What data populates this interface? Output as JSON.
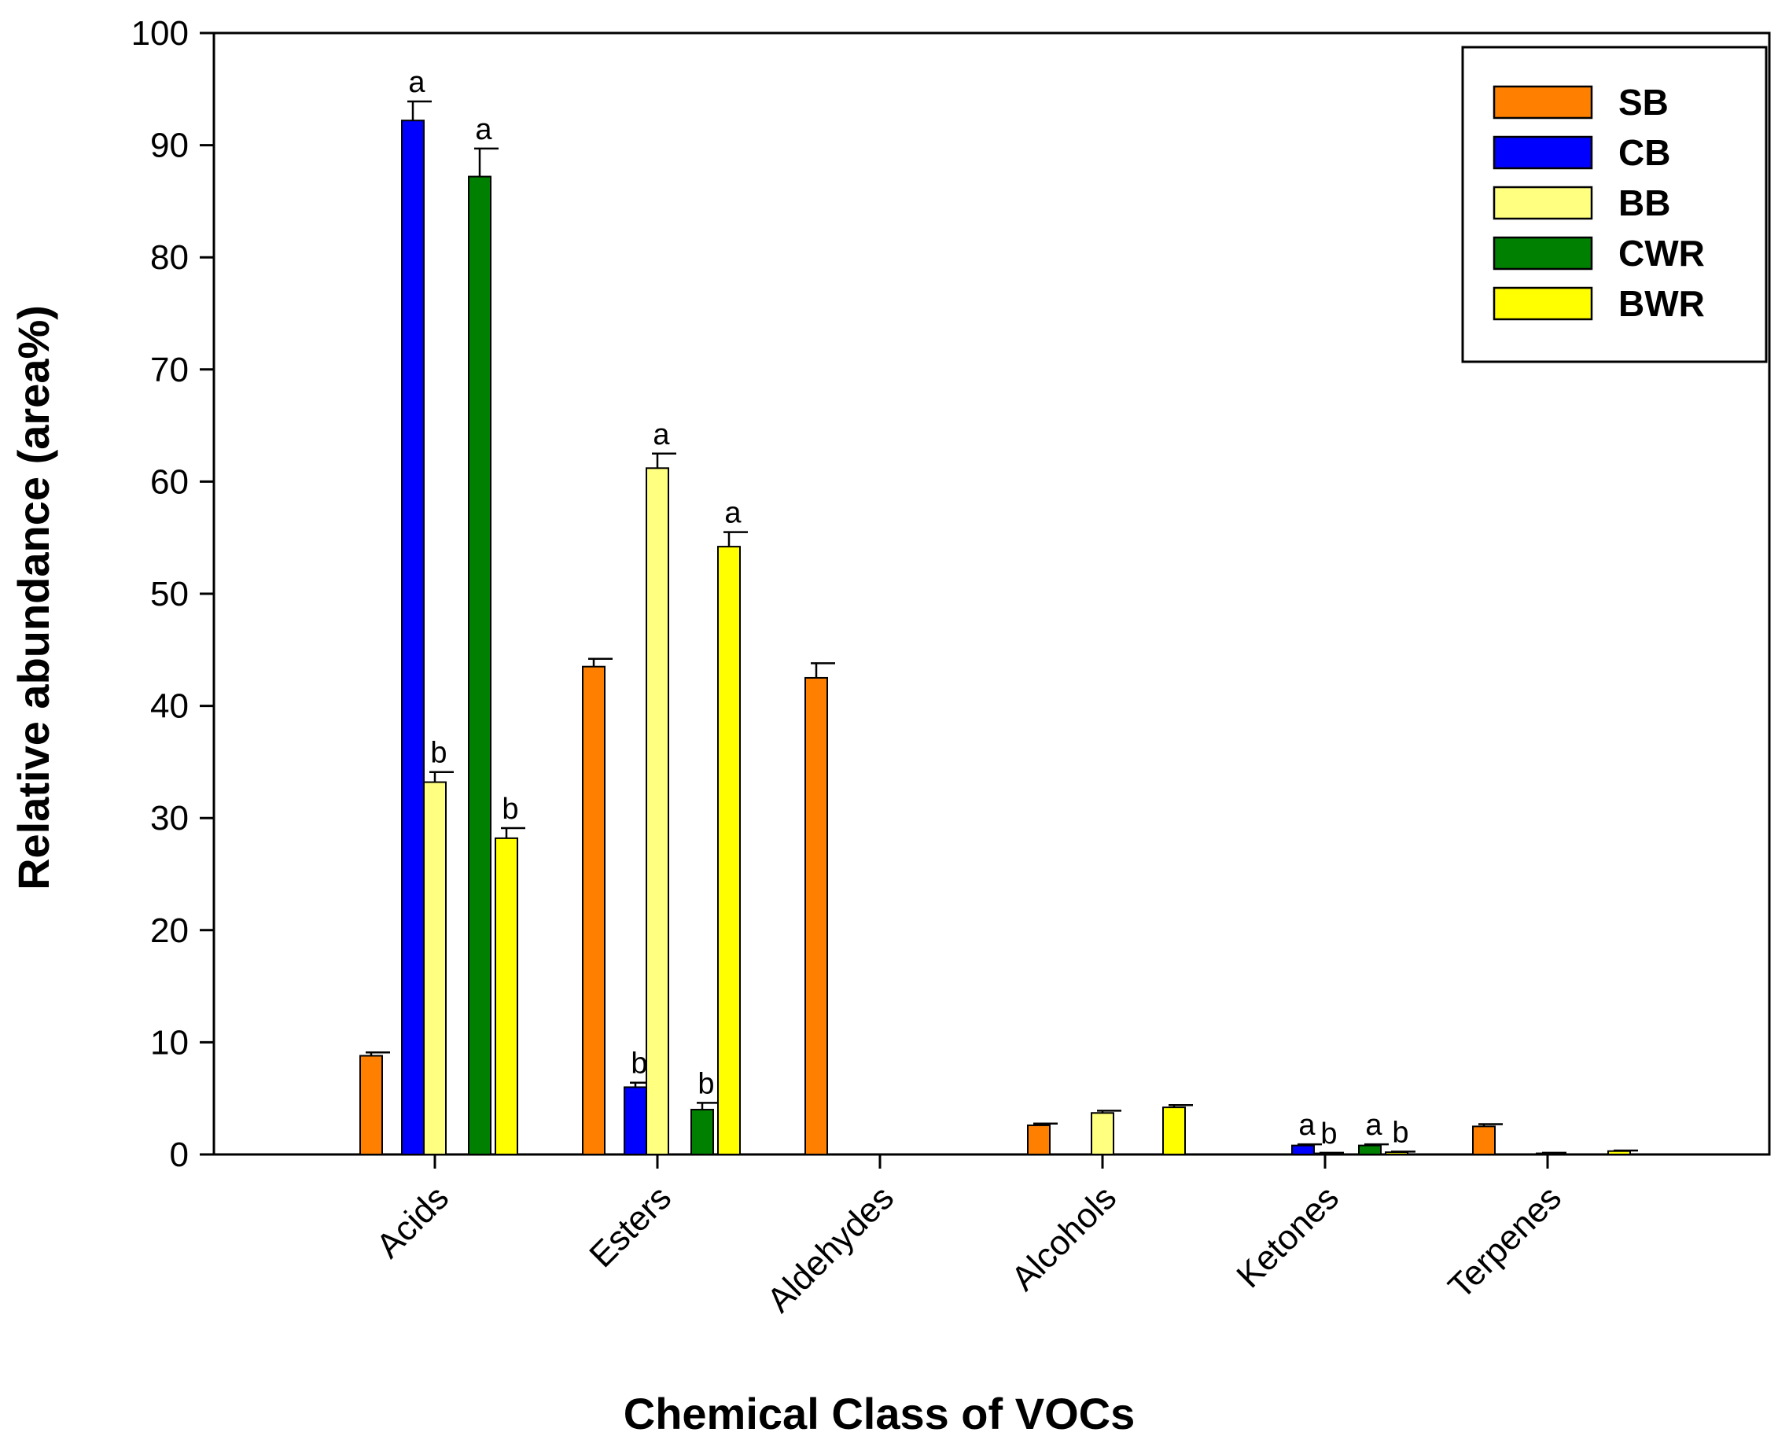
{
  "chart_data": {
    "type": "bar",
    "title": "",
    "xlabel": "Chemical Class of VOCs",
    "ylabel": "Relative abundance (area%)",
    "ylim": [
      0,
      100
    ],
    "yticks": [
      "0",
      "10",
      "20",
      "30",
      "40",
      "50",
      "60",
      "70",
      "80",
      "90",
      "100"
    ],
    "categories": [
      "Acids",
      "Esters",
      "Aldehydes",
      "Alcohols",
      "Ketones",
      "Terpenes"
    ],
    "legend_position": "top-right",
    "series": [
      {
        "name": "SB",
        "color": "#FF8000",
        "values": [
          8.8,
          43.5,
          42.5,
          2.6,
          0,
          2.5
        ],
        "errors": [
          0.3,
          0.7,
          1.3,
          0.15,
          0,
          0.2
        ],
        "sig": [
          "",
          "",
          "",
          "",
          "",
          ""
        ]
      },
      {
        "name": "CB",
        "color": "#0000FF",
        "values": [
          92.2,
          6.0,
          0,
          0,
          0.8,
          0
        ],
        "errors": [
          1.7,
          0.4,
          0,
          0,
          0.1,
          0
        ],
        "sig": [
          "a",
          "b",
          "",
          "",
          "a",
          ""
        ]
      },
      {
        "name": "BB",
        "color": "#FFFF80",
        "values": [
          33.2,
          61.2,
          0,
          3.7,
          0.1,
          0.1
        ],
        "errors": [
          0.9,
          1.3,
          0,
          0.2,
          0.05,
          0.05
        ],
        "sig": [
          "b",
          "a",
          "",
          "",
          "b",
          ""
        ]
      },
      {
        "name": "CWR",
        "color": "#008000",
        "values": [
          87.2,
          4.0,
          0,
          0,
          0.8,
          0
        ],
        "errors": [
          2.5,
          0.6,
          0,
          0,
          0.1,
          0
        ],
        "sig": [
          "a",
          "b",
          "",
          "",
          "a",
          ""
        ]
      },
      {
        "name": "BWR",
        "color": "#FFFF00",
        "values": [
          28.2,
          54.2,
          0,
          4.2,
          0.2,
          0.3
        ],
        "errors": [
          0.9,
          1.3,
          0,
          0.2,
          0.05,
          0.05
        ],
        "sig": [
          "b",
          "a",
          "",
          "",
          "b",
          ""
        ]
      }
    ]
  }
}
